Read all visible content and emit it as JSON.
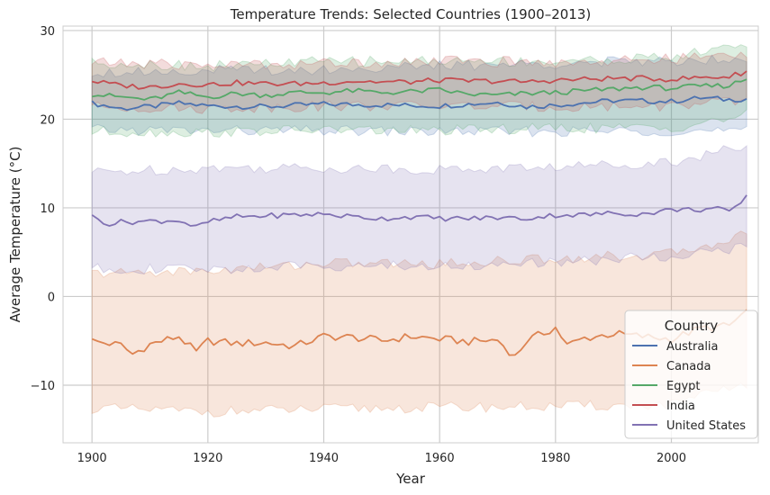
{
  "chart_data": {
    "type": "line",
    "title": "Temperature Trends: Selected Countries (1900–2013)",
    "xlabel": "Year",
    "ylabel": "Average Temperature (°C)",
    "xlim": [
      1895,
      2015
    ],
    "ylim": [
      -16.5,
      30.5
    ],
    "xticks": [
      1900,
      1920,
      1940,
      1960,
      1980,
      2000
    ],
    "yticks": [
      -10,
      0,
      10,
      20,
      30
    ],
    "xtick_labels": [
      "1900",
      "1920",
      "1940",
      "1960",
      "1980",
      "2000"
    ],
    "ytick_labels": [
      "−10",
      "0",
      "10",
      "20",
      "30"
    ],
    "grid": true,
    "legend": {
      "title": "Country",
      "position": "lower-right"
    },
    "x_start": 1900,
    "x_end": 2013,
    "series": [
      {
        "name": "Australia",
        "color": "#4c72b0",
        "keypoints": [
          [
            1900,
            21.8
          ],
          [
            1905,
            21.2
          ],
          [
            1910,
            21.4
          ],
          [
            1915,
            21.8
          ],
          [
            1920,
            21.5
          ],
          [
            1930,
            21.4
          ],
          [
            1940,
            21.7
          ],
          [
            1950,
            21.6
          ],
          [
            1960,
            21.5
          ],
          [
            1970,
            21.9
          ],
          [
            1975,
            21.4
          ],
          [
            1980,
            21.6
          ],
          [
            1990,
            22.1
          ],
          [
            2000,
            22.0
          ],
          [
            2005,
            22.4
          ],
          [
            2010,
            22.2
          ],
          [
            2013,
            22.3
          ]
        ],
        "band": [
          [
            1900,
            18.8,
            25.3
          ],
          [
            1920,
            18.7,
            25.5
          ],
          [
            1940,
            18.7,
            25.6
          ],
          [
            1960,
            18.6,
            26.0
          ],
          [
            1980,
            18.6,
            26.3
          ],
          [
            2000,
            18.7,
            26.6
          ],
          [
            2013,
            18.6,
            27.0
          ]
        ]
      },
      {
        "name": "Canada",
        "color": "#dd8452",
        "keypoints": [
          [
            1900,
            -5.0
          ],
          [
            1905,
            -5.5
          ],
          [
            1907,
            -6.5
          ],
          [
            1910,
            -5.4
          ],
          [
            1915,
            -4.5
          ],
          [
            1918,
            -6.3
          ],
          [
            1920,
            -5.0
          ],
          [
            1925,
            -5.3
          ],
          [
            1930,
            -5.2
          ],
          [
            1935,
            -5.6
          ],
          [
            1940,
            -4.5
          ],
          [
            1945,
            -4.6
          ],
          [
            1950,
            -5.0
          ],
          [
            1955,
            -4.5
          ],
          [
            1960,
            -4.8
          ],
          [
            1965,
            -5.1
          ],
          [
            1970,
            -4.9
          ],
          [
            1973,
            -6.8
          ],
          [
            1975,
            -5.0
          ],
          [
            1980,
            -3.5
          ],
          [
            1982,
            -5.5
          ],
          [
            1985,
            -4.7
          ],
          [
            1990,
            -4.2
          ],
          [
            1995,
            -4.5
          ],
          [
            2000,
            -4.8
          ],
          [
            2005,
            -3.6
          ],
          [
            2010,
            -3.3
          ],
          [
            2013,
            -1.6
          ]
        ],
        "band": [
          [
            1900,
            -12.6,
            2.6
          ],
          [
            1920,
            -13.0,
            2.9
          ],
          [
            1940,
            -12.7,
            3.8
          ],
          [
            1960,
            -12.5,
            3.7
          ],
          [
            1980,
            -12.4,
            4.3
          ],
          [
            2000,
            -12.2,
            4.8
          ],
          [
            2013,
            -9.8,
            7.0
          ]
        ]
      },
      {
        "name": "Egypt",
        "color": "#55a868",
        "keypoints": [
          [
            1900,
            22.8
          ],
          [
            1905,
            22.5
          ],
          [
            1910,
            22.2
          ],
          [
            1915,
            23.0
          ],
          [
            1920,
            22.5
          ],
          [
            1925,
            22.9
          ],
          [
            1930,
            22.7
          ],
          [
            1935,
            23.0
          ],
          [
            1940,
            23.0
          ],
          [
            1945,
            23.2
          ],
          [
            1950,
            23.0
          ],
          [
            1955,
            23.1
          ],
          [
            1960,
            23.3
          ],
          [
            1965,
            22.8
          ],
          [
            1970,
            22.7
          ],
          [
            1975,
            22.9
          ],
          [
            1980,
            23.0
          ],
          [
            1985,
            23.2
          ],
          [
            1990,
            23.4
          ],
          [
            1995,
            23.6
          ],
          [
            2000,
            23.5
          ],
          [
            2005,
            23.7
          ],
          [
            2010,
            23.8
          ],
          [
            2013,
            24.6
          ]
        ],
        "band": [
          [
            1900,
            18.6,
            26.4
          ],
          [
            1920,
            18.5,
            26.0
          ],
          [
            1940,
            18.8,
            26.5
          ],
          [
            1960,
            18.7,
            26.6
          ],
          [
            1980,
            19.0,
            26.5
          ],
          [
            2000,
            19.0,
            27.0
          ],
          [
            2013,
            20.5,
            28.5
          ]
        ]
      },
      {
        "name": "India",
        "color": "#c44e52",
        "keypoints": [
          [
            1900,
            24.3
          ],
          [
            1905,
            23.8
          ],
          [
            1910,
            23.6
          ],
          [
            1915,
            24.0
          ],
          [
            1920,
            23.9
          ],
          [
            1925,
            24.1
          ],
          [
            1930,
            24.0
          ],
          [
            1935,
            24.0
          ],
          [
            1940,
            24.1
          ],
          [
            1945,
            24.3
          ],
          [
            1950,
            24.2
          ],
          [
            1955,
            24.2
          ],
          [
            1960,
            24.4
          ],
          [
            1965,
            24.3
          ],
          [
            1970,
            24.3
          ],
          [
            1975,
            24.2
          ],
          [
            1980,
            24.4
          ],
          [
            1985,
            24.5
          ],
          [
            1990,
            24.6
          ],
          [
            1995,
            24.6
          ],
          [
            2000,
            24.5
          ],
          [
            2005,
            24.7
          ],
          [
            2010,
            24.8
          ],
          [
            2013,
            25.4
          ]
        ],
        "band": [
          [
            1900,
            21.4,
            26.4
          ],
          [
            1920,
            21.2,
            26.1
          ],
          [
            1940,
            21.5,
            26.3
          ],
          [
            1960,
            21.5,
            26.6
          ],
          [
            1980,
            21.4,
            26.4
          ],
          [
            2000,
            21.5,
            26.8
          ],
          [
            2013,
            22.0,
            27.3
          ]
        ]
      },
      {
        "name": "United States",
        "color": "#8172b3",
        "keypoints": [
          [
            1900,
            9.0
          ],
          [
            1903,
            8.2
          ],
          [
            1905,
            8.4
          ],
          [
            1910,
            8.5
          ],
          [
            1915,
            8.6
          ],
          [
            1918,
            7.8
          ],
          [
            1920,
            8.4
          ],
          [
            1925,
            9.0
          ],
          [
            1930,
            9.1
          ],
          [
            1935,
            9.2
          ],
          [
            1940,
            9.3
          ],
          [
            1945,
            9.0
          ],
          [
            1950,
            8.8
          ],
          [
            1955,
            9.0
          ],
          [
            1960,
            8.8
          ],
          [
            1965,
            8.8
          ],
          [
            1970,
            8.9
          ],
          [
            1975,
            8.8
          ],
          [
            1980,
            9.2
          ],
          [
            1985,
            9.2
          ],
          [
            1990,
            9.4
          ],
          [
            1995,
            9.3
          ],
          [
            2000,
            9.8
          ],
          [
            2005,
            9.8
          ],
          [
            2008,
            10.0
          ],
          [
            2010,
            9.4
          ],
          [
            2013,
            11.2
          ]
        ],
        "band": [
          [
            1900,
            14.0,
            3.2
          ],
          [
            1920,
            14.5,
            3.0
          ],
          [
            1940,
            14.5,
            3.5
          ],
          [
            1960,
            14.3,
            3.4
          ],
          [
            1980,
            14.6,
            3.8
          ],
          [
            2000,
            15.2,
            4.6
          ],
          [
            2013,
            17.0,
            5.6
          ]
        ]
      }
    ]
  }
}
